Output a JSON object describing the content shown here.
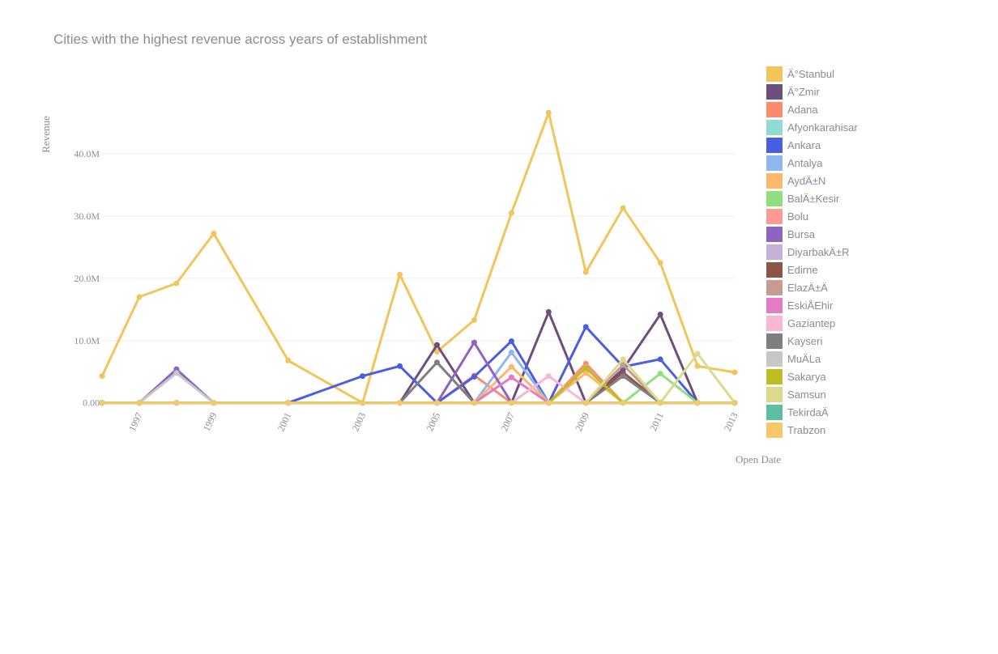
{
  "chart_data": {
    "type": "line",
    "title": "Cities with the highest revenue across years of establishment",
    "xlabel": "Open Date",
    "ylabel": "Revenue",
    "x": [
      1996,
      1997,
      1998,
      1999,
      2001,
      2003,
      2004,
      2005,
      2006,
      2007,
      2008,
      2009,
      2010,
      2011,
      2012,
      2013
    ],
    "xticks": [
      1997,
      1999,
      2001,
      2003,
      2005,
      2007,
      2009,
      2011,
      2013
    ],
    "xlim": [
      1996,
      2013
    ],
    "yticks": [
      0,
      10000000,
      20000000,
      30000000,
      40000000
    ],
    "ytick_labels": [
      "0.00",
      "10.0M",
      "20.0M",
      "30.0M",
      "40.0M"
    ],
    "ylim": [
      -300000,
      53000000
    ],
    "legend_position": "right",
    "series": [
      {
        "name": "Ä°Stanbul",
        "color": "#f2c55c",
        "values": [
          4300000,
          17000000,
          19200000,
          27200000,
          6800000,
          0,
          20600000,
          8200000,
          13300000,
          30500000,
          46600000,
          21000000,
          31300000,
          22500000,
          5900000,
          4900000
        ]
      },
      {
        "name": "Ä°Zmir",
        "color": "#6d4e7c",
        "values": [
          0,
          0,
          0,
          0,
          0,
          0,
          0,
          9300000,
          0,
          0,
          14600000,
          0,
          5400000,
          14200000,
          0,
          0
        ]
      },
      {
        "name": "Adana",
        "color": "#fd8a6b",
        "values": [
          0,
          0,
          0,
          0,
          0,
          0,
          0,
          0,
          4400000,
          0,
          0,
          6300000,
          0,
          0,
          0,
          0
        ]
      },
      {
        "name": "Afyonkarahisar",
        "color": "#8fdcd2",
        "values": [
          0,
          0,
          0,
          0,
          0,
          0,
          0,
          0,
          0,
          0,
          0,
          0,
          0,
          0,
          0,
          0
        ]
      },
      {
        "name": "Ankara",
        "color": "#4a5ee0",
        "values": [
          0,
          0,
          0,
          0,
          0,
          4300000,
          5900000,
          0,
          4200000,
          9900000,
          0,
          12200000,
          5800000,
          7000000,
          0,
          0
        ]
      },
      {
        "name": "Antalya",
        "color": "#8fb8f0",
        "values": [
          0,
          0,
          0,
          0,
          0,
          0,
          0,
          0,
          0,
          8100000,
          0,
          0,
          0,
          0,
          0,
          0
        ]
      },
      {
        "name": "AydÄ±N",
        "color": "#fdb86b",
        "values": [
          0,
          0,
          0,
          0,
          0,
          0,
          0,
          0,
          0,
          5800000,
          0,
          4800000,
          0,
          0,
          0,
          0
        ]
      },
      {
        "name": "BalÄ±Kesir",
        "color": "#90de80",
        "values": [
          0,
          0,
          0,
          0,
          0,
          0,
          0,
          0,
          0,
          0,
          0,
          0,
          0,
          4700000,
          0,
          0
        ]
      },
      {
        "name": "Bolu",
        "color": "#fd9a93",
        "values": [
          0,
          0,
          0,
          0,
          0,
          0,
          0,
          0,
          0,
          0,
          0,
          5800000,
          0,
          0,
          0,
          0
        ]
      },
      {
        "name": "Bursa",
        "color": "#8d64c0",
        "values": [
          0,
          0,
          5400000,
          0,
          0,
          0,
          0,
          0,
          9700000,
          0,
          0,
          0,
          0,
          0,
          0,
          0
        ]
      },
      {
        "name": "DiyarbakÄ±R",
        "color": "#c5b0d8",
        "values": [
          0,
          0,
          0,
          0,
          0,
          0,
          0,
          0,
          0,
          0,
          0,
          0,
          0,
          0,
          0,
          0
        ]
      },
      {
        "name": "Edirne",
        "color": "#8b5548",
        "values": [
          0,
          0,
          0,
          0,
          0,
          0,
          0,
          0,
          0,
          0,
          0,
          0,
          4900000,
          0,
          0,
          0
        ]
      },
      {
        "name": "ElazÄ±Ä",
        "color": "#c59c92",
        "values": [
          0,
          0,
          0,
          0,
          0,
          0,
          0,
          0,
          0,
          0,
          0,
          0,
          6100000,
          0,
          0,
          0
        ]
      },
      {
        "name": "EskiÅEhir",
        "color": "#e37bc6",
        "values": [
          0,
          0,
          0,
          0,
          0,
          0,
          0,
          0,
          0,
          4100000,
          0,
          0,
          0,
          0,
          0,
          0
        ]
      },
      {
        "name": "Gaziantep",
        "color": "#f8b8d4",
        "values": [
          0,
          0,
          0,
          0,
          0,
          0,
          0,
          0,
          0,
          0,
          4300000,
          0,
          0,
          0,
          0,
          0
        ]
      },
      {
        "name": "Kayseri",
        "color": "#7f7f7f",
        "values": [
          0,
          0,
          0,
          0,
          0,
          0,
          0,
          6500000,
          0,
          0,
          0,
          0,
          4300000,
          0,
          0,
          0
        ]
      },
      {
        "name": "MuÄLa",
        "color": "#c7c7c7",
        "values": [
          0,
          0,
          4800000,
          0,
          0,
          0,
          0,
          0,
          0,
          0,
          0,
          0,
          0,
          0,
          0,
          0
        ]
      },
      {
        "name": "Sakarya",
        "color": "#bcbd22",
        "values": [
          0,
          0,
          0,
          0,
          0,
          0,
          0,
          0,
          0,
          0,
          0,
          5600000,
          0,
          0,
          0,
          0
        ]
      },
      {
        "name": "Samsun",
        "color": "#dbdb8d",
        "values": [
          0,
          0,
          0,
          0,
          0,
          0,
          0,
          0,
          0,
          0,
          0,
          0,
          7000000,
          0,
          7900000,
          0
        ]
      },
      {
        "name": "TekirdaÄ",
        "color": "#5bbfa0",
        "values": [
          0,
          0,
          0,
          0,
          0,
          0,
          0,
          0,
          0,
          0,
          0,
          0,
          0,
          0,
          0,
          0
        ]
      },
      {
        "name": "Trabzon",
        "color": "#f5c96a",
        "values": [
          0,
          0,
          0,
          0,
          0,
          0,
          0,
          0,
          0,
          0,
          0,
          0,
          0,
          0,
          0,
          0
        ]
      }
    ]
  }
}
